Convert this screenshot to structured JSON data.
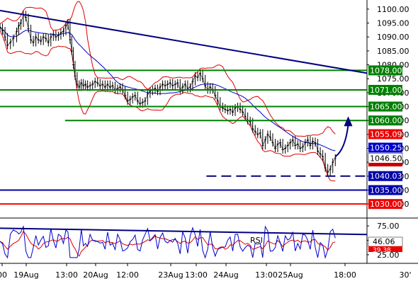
{
  "chart_data": {
    "type": "candlestick",
    "main_panel": {
      "y_ticks": [
        "1100.00",
        "1095.00",
        "1090.00",
        "1085.00",
        "1080.00",
        "1075.00",
        "1070.00",
        "1065.00",
        "1060.00",
        "1055.00",
        "1050.00",
        "1045.00",
        "1040.00",
        "1035.00",
        "1030.00"
      ],
      "ylim": [
        1027.5,
        1101.5
      ],
      "x_ticks": [
        "00",
        "19Aug",
        "13:00",
        "20Aug",
        "12:00",
        "23Aug",
        "13:00",
        "24Aug",
        "13:00",
        "25Aug",
        "18:00",
        "30'"
      ],
      "price_path": [
        [
          0,
          1093.5
        ],
        [
          0.6,
          1092.2
        ],
        [
          1.2,
          1090
        ],
        [
          1.8,
          1087
        ],
        [
          2.5,
          1088
        ],
        [
          3.2,
          1089.5
        ],
        [
          4,
          1092
        ],
        [
          4.5,
          1094
        ],
        [
          5,
          1095
        ],
        [
          5.6,
          1098
        ],
        [
          6.2,
          1097
        ],
        [
          6.8,
          1093
        ],
        [
          7.4,
          1089
        ],
        [
          8.0,
          1088
        ],
        [
          8.6,
          1090
        ],
        [
          9.2,
          1089
        ],
        [
          9.8,
          1088.5
        ],
        [
          10.4,
          1090
        ],
        [
          11,
          1089.5
        ],
        [
          11.6,
          1088
        ],
        [
          12.2,
          1090
        ],
        [
          12.8,
          1091
        ],
        [
          13.4,
          1090
        ],
        [
          14,
          1090.5
        ],
        [
          14.6,
          1091.5
        ],
        [
          15.2,
          1092
        ],
        [
          15.8,
          1094
        ],
        [
          16.3,
          1095
        ],
        [
          16.8,
          1089
        ],
        [
          17.2,
          1085
        ],
        [
          17.6,
          1080
        ],
        [
          18,
          1076
        ],
        [
          18.5,
          1073
        ],
        [
          19,
          1072
        ],
        [
          19.5,
          1073.5
        ],
        [
          20,
          1072.5
        ],
        [
          20.5,
          1073
        ],
        [
          21,
          1072
        ],
        [
          21.6,
          1072.5
        ],
        [
          22.2,
          1073
        ],
        [
          22.8,
          1074
        ],
        [
          23.4,
          1073.5
        ],
        [
          24,
          1072.5
        ],
        [
          24.6,
          1073
        ],
        [
          25.2,
          1072
        ],
        [
          25.8,
          1073
        ],
        [
          26.4,
          1072
        ],
        [
          27,
          1072.5
        ],
        [
          27.6,
          1071
        ],
        [
          28.2,
          1071.5
        ],
        [
          28.8,
          1072
        ],
        [
          29.4,
          1071
        ],
        [
          30,
          1069
        ],
        [
          30.6,
          1067
        ],
        [
          31.2,
          1067.5
        ],
        [
          31.8,
          1068.5
        ],
        [
          32.4,
          1069
        ],
        [
          33,
          1067
        ],
        [
          33.6,
          1066
        ],
        [
          34.2,
          1066.5
        ],
        [
          34.8,
          1067
        ],
        [
          35.4,
          1069.5
        ],
        [
          36,
          1070.5
        ],
        [
          36.6,
          1071
        ],
        [
          37.2,
          1071.5
        ],
        [
          37.8,
          1070.5
        ],
        [
          38.4,
          1072
        ],
        [
          39,
          1073
        ],
        [
          39.6,
          1072.5
        ],
        [
          40.2,
          1073
        ],
        [
          40.8,
          1073.5
        ],
        [
          41.4,
          1072.5
        ],
        [
          42,
          1073
        ],
        [
          42.6,
          1073.5
        ],
        [
          43.2,
          1071
        ],
        [
          43.8,
          1072
        ],
        [
          44.4,
          1073
        ],
        [
          45,
          1071.5
        ],
        [
          45.6,
          1072
        ],
        [
          46.2,
          1074
        ],
        [
          46.8,
          1076
        ],
        [
          47.4,
          1075.5
        ],
        [
          48,
          1077
        ],
        [
          48.6,
          1075
        ],
        [
          49.2,
          1072.5
        ],
        [
          49.8,
          1071
        ],
        [
          50.4,
          1072
        ],
        [
          51,
          1071
        ],
        [
          51.6,
          1069
        ],
        [
          52.2,
          1067
        ],
        [
          52.8,
          1065
        ],
        [
          53.4,
          1064.5
        ],
        [
          54,
          1064
        ],
        [
          54.6,
          1063.5
        ],
        [
          55.2,
          1064
        ],
        [
          55.8,
          1063
        ],
        [
          56.4,
          1064.5
        ],
        [
          57,
          1065
        ],
        [
          57.6,
          1064
        ],
        [
          58.2,
          1063
        ],
        [
          58.8,
          1061.5
        ],
        [
          59.4,
          1060
        ],
        [
          60,
          1059.5
        ],
        [
          60.6,
          1057
        ],
        [
          61.2,
          1056
        ],
        [
          61.8,
          1055
        ],
        [
          62.4,
          1055.5
        ],
        [
          63,
          1051
        ],
        [
          63.6,
          1053
        ],
        [
          64.2,
          1055
        ],
        [
          64.8,
          1054
        ],
        [
          65.4,
          1052
        ],
        [
          66,
          1050
        ],
        [
          66.6,
          1051.5
        ],
        [
          67.2,
          1052
        ],
        [
          67.8,
          1049.5
        ],
        [
          68.4,
          1050
        ],
        [
          69,
          1051
        ],
        [
          69.6,
          1052
        ],
        [
          70.2,
          1053
        ],
        [
          70.8,
          1051
        ],
        [
          71.4,
          1051.5
        ],
        [
          72,
          1050
        ],
        [
          72.6,
          1050.5
        ],
        [
          73.2,
          1052
        ],
        [
          73.8,
          1053
        ],
        [
          74.4,
          1051
        ],
        [
          75,
          1052.5
        ],
        [
          75.6,
          1052
        ],
        [
          76.2,
          1049
        ],
        [
          76.8,
          1048
        ],
        [
          77.4,
          1047
        ],
        [
          78,
          1043
        ],
        [
          78.6,
          1041.5
        ],
        [
          79.2,
          1042.5
        ],
        [
          79.8,
          1045
        ],
        [
          80.4,
          1046.5
        ]
      ],
      "horizontal_levels": [
        {
          "value": 1078.0,
          "label": "1078.00",
          "kind": "green-line"
        },
        {
          "value": 1071.0,
          "label": "1071.00",
          "kind": "green-line"
        },
        {
          "value": 1065.0,
          "label": "1065.00",
          "kind": "green-line"
        },
        {
          "value": 1060.0,
          "label": "1060.00",
          "kind": "green-line"
        },
        {
          "value": 1055.09,
          "label": "1055.09",
          "kind": "red-badge"
        },
        {
          "value": 1050.25,
          "label": "1050.25",
          "kind": "blue-badge"
        },
        {
          "value": 1046.5,
          "label": "1046.50",
          "kind": "last-price"
        },
        {
          "value": 1040.03,
          "label": "1040.03",
          "kind": "dashed-support"
        },
        {
          "value": 1035.0,
          "label": "1035.00",
          "kind": "blue-line"
        },
        {
          "value": 1030.0,
          "label": "1030.00",
          "kind": "red-line"
        }
      ],
      "trendline": [
        [
          0,
          1099.5
        ],
        [
          88,
          1077
        ]
      ],
      "forecast_arrow": [
        [
          80.4,
          1047
        ],
        [
          83.5,
          1061
        ]
      ]
    },
    "rsi_panel": {
      "label": "RSI",
      "y_ticks": [
        "75.00",
        "50.00",
        "25.00"
      ],
      "ylim": [
        15,
        80
      ],
      "rsi_value": "46.06",
      "signal_value": "39.38",
      "trendline": [
        [
          0,
          71
        ],
        [
          88,
          60
        ]
      ]
    }
  },
  "colors": {
    "price": "#000000",
    "ma": "#0000cc",
    "bands": "#dd0000",
    "green_level": "#008000",
    "trend": "#000080",
    "red_level": "#ff0000",
    "blue_level": "#0000aa"
  }
}
